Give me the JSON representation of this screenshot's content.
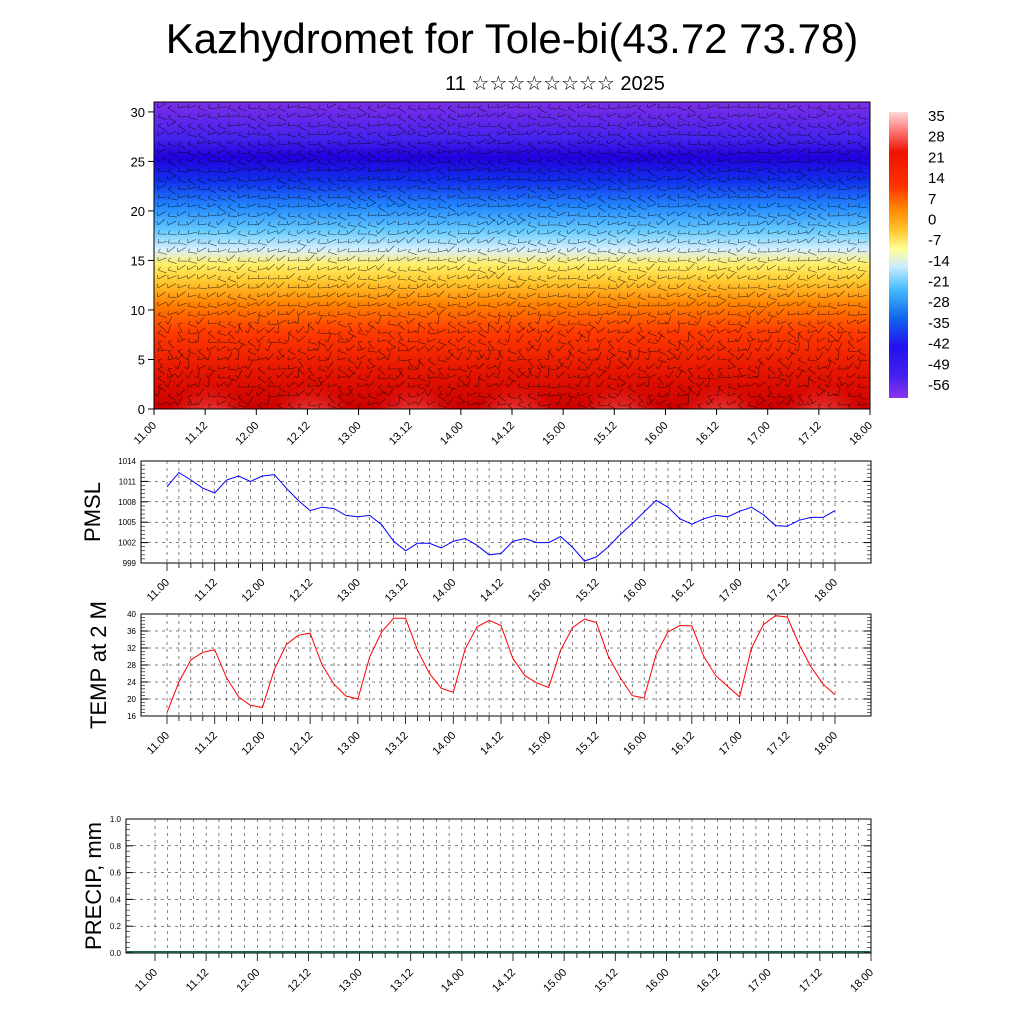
{
  "header": {
    "title": "Kazhydromet for Tole-bi(43.72 73.78)",
    "subtitle": "11 ☆☆☆☆☆☆☆☆ 2025"
  },
  "time_ticks": [
    "11.00",
    "11.12",
    "12.00",
    "12.12",
    "13.00",
    "13.12",
    "14.00",
    "14.12",
    "15.00",
    "15.12",
    "16.00",
    "16.12",
    "17.00",
    "17.12",
    "18.00"
  ],
  "chart_data": [
    {
      "type": "heatmap",
      "title": "",
      "x_ticks": [
        "11.00",
        "11.12",
        "12.00",
        "12.12",
        "13.00",
        "13.12",
        "14.00",
        "14.12",
        "15.00",
        "15.12",
        "16.00",
        "16.12",
        "17.00",
        "17.12",
        "18.00"
      ],
      "y_ticks": [
        "0",
        "5",
        "10",
        "15",
        "20",
        "25",
        "30"
      ],
      "ylim": [
        0,
        31
      ],
      "colorbar": {
        "labels": [
          "35",
          "28",
          "21",
          "14",
          "7",
          "0",
          "-7",
          "-14",
          "-21",
          "-28",
          "-35",
          "-42",
          "-49",
          "-56"
        ],
        "range": [
          -60,
          38
        ]
      },
      "overlay": "wind barbs",
      "colors": {
        "warm": "#dd1100",
        "hot": "#ffb0b0",
        "cold": "#2200ee",
        "violet": "#7a2ee8",
        "yellow": "#ffee44"
      }
    },
    {
      "type": "line",
      "ylabel": "PMSL",
      "y_ticks": [
        "1014",
        "1011",
        "1008",
        "1005",
        "1002",
        "999"
      ],
      "ylim": [
        999,
        1014
      ],
      "color": "#0000ff",
      "x_ticks": [
        "11.00",
        "11.12",
        "12.00",
        "12.12",
        "13.00",
        "13.12",
        "14.00",
        "14.12",
        "15.00",
        "15.12",
        "16.00",
        "16.12",
        "17.00",
        "17.12",
        "18.00"
      ],
      "step_hours": 3,
      "series": [
        {
          "values": [
            1010.2,
            1012.3,
            1011.2,
            1010.0,
            1009.3,
            1011.2,
            1011.8,
            1011.0,
            1011.8,
            1012.0,
            1010.0,
            1008.2,
            1006.7,
            1007.2,
            1007.0,
            1006.0,
            1005.8,
            1006.0,
            1004.6,
            1002.2,
            1000.8,
            1001.9,
            1001.9,
            1001.2,
            1002.2,
            1002.6,
            1001.6,
            1000.2,
            1000.4,
            1002.2,
            1002.6,
            1002.0,
            1002.0,
            1002.9,
            1001.3,
            999.3,
            999.9,
            1001.4,
            1003.2,
            1004.8,
            1006.5,
            1008.2,
            1007.2,
            1005.5,
            1004.7,
            1005.5,
            1006.0,
            1005.8,
            1006.6,
            1007.2,
            1006.1,
            1004.5,
            1004.4,
            1005.3,
            1005.7,
            1005.7,
            1006.7
          ]
        }
      ]
    },
    {
      "type": "line",
      "ylabel": "TEMP at 2 M",
      "y_ticks": [
        "40",
        "36",
        "32",
        "28",
        "24",
        "20",
        "16"
      ],
      "ylim": [
        16,
        40
      ],
      "color": "#ff0000",
      "x_ticks": [
        "11.00",
        "11.12",
        "12.00",
        "12.12",
        "13.00",
        "13.12",
        "14.00",
        "14.12",
        "15.00",
        "15.12",
        "16.00",
        "16.12",
        "17.00",
        "17.12",
        "18.00"
      ],
      "step_hours": 3,
      "series": [
        {
          "values": [
            16.8,
            24.0,
            29.2,
            31.0,
            31.6,
            25.0,
            20.5,
            18.5,
            18.0,
            27.0,
            32.8,
            35.0,
            35.5,
            28.0,
            23.5,
            20.7,
            20.0,
            30.0,
            35.8,
            39.0,
            39.0,
            31.5,
            26.0,
            22.5,
            21.6,
            31.8,
            37.0,
            38.5,
            37.3,
            29.5,
            25.5,
            23.8,
            22.7,
            31.5,
            36.8,
            38.8,
            38.0,
            30.0,
            25.0,
            20.8,
            20.2,
            30.5,
            35.8,
            37.3,
            37.2,
            30.0,
            25.5,
            23.0,
            20.5,
            32.0,
            37.5,
            39.6,
            39.3,
            32.8,
            27.5,
            23.5,
            21.0
          ]
        }
      ]
    },
    {
      "type": "bar",
      "ylabel": "PRECIP, mm",
      "y_ticks": [
        "1.0",
        "0.8",
        "0.6",
        "0.4",
        "0.2",
        "0.0"
      ],
      "ylim": [
        0,
        1
      ],
      "x_ticks": [
        "11.00",
        "11.12",
        "12.00",
        "12.12",
        "13.00",
        "13.12",
        "14.00",
        "14.12",
        "15.00",
        "15.12",
        "16.00",
        "16.12",
        "17.00",
        "17.12",
        "18.00"
      ],
      "series": [
        {
          "values": [
            0,
            0,
            0,
            0,
            0,
            0,
            0,
            0,
            0,
            0,
            0,
            0,
            0,
            0,
            0
          ]
        }
      ]
    }
  ]
}
